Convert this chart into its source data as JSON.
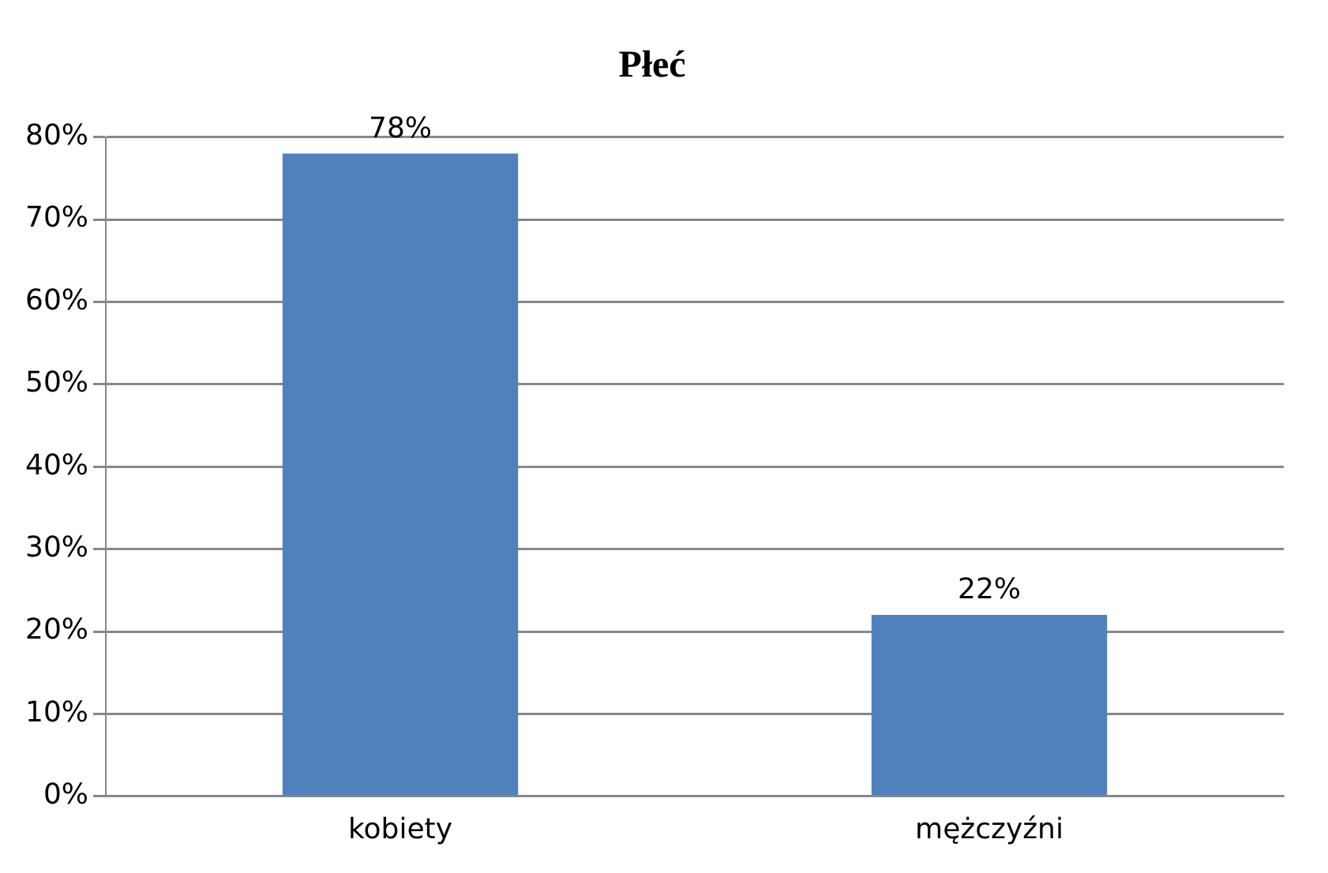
{
  "chart_data": {
    "type": "bar",
    "title": "Płeć",
    "categories": [
      "kobiety",
      "mężczyźni"
    ],
    "values": [
      78,
      22
    ],
    "color": "#4f81bd",
    "data_labels": true,
    "value_labels": [
      "78%",
      "22%"
    ],
    "ylim": [
      0,
      80
    ],
    "yticks": [
      {
        "value": 0,
        "label": "0%"
      },
      {
        "value": 10,
        "label": "10%"
      },
      {
        "value": 20,
        "label": "20%"
      },
      {
        "value": 30,
        "label": "30%"
      },
      {
        "value": 40,
        "label": "40%"
      },
      {
        "value": 50,
        "label": "50%"
      },
      {
        "value": 60,
        "label": "60%"
      },
      {
        "value": 70,
        "label": "70%"
      },
      {
        "value": 80,
        "label": "80%"
      }
    ],
    "grid": "y",
    "legend": false
  }
}
